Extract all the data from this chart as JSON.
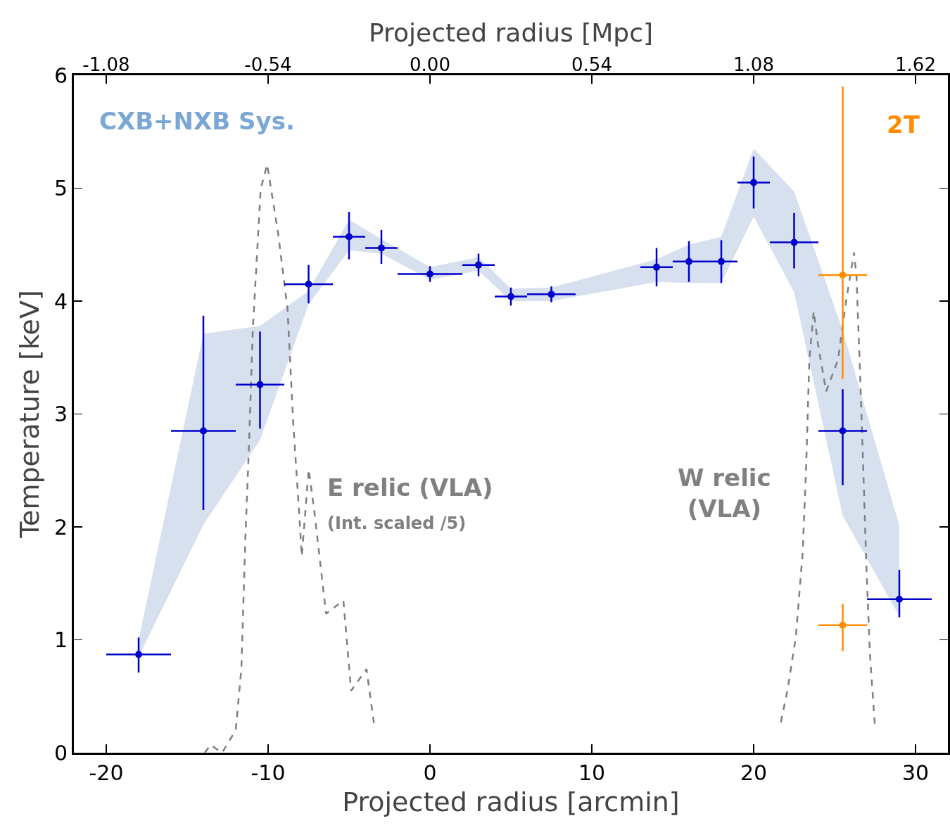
{
  "chart_data": {
    "type": "scatter",
    "xlabel": "Projected radius [arcmin]",
    "ylabel": "Temperature [keV]",
    "x2label": "Projected radius [Mpc]",
    "xlim": [
      -22,
      32
    ],
    "xticks": [
      -20,
      -10,
      0,
      10,
      20,
      30
    ],
    "x2lim": [
      -1.188,
      1.728
    ],
    "x2ticks": [
      -1.08,
      -0.54,
      {
        "value": 0,
        "label": "0.00"
      },
      0.54,
      1.08,
      1.62
    ],
    "ylim": [
      0,
      6
    ],
    "yticks": [
      0,
      1,
      2,
      3,
      4,
      5,
      6
    ],
    "grid": false,
    "marker": "circle",
    "annotations": [
      "CXB+NXB Sys.",
      "(Int. scaled /5)"
    ],
    "series": [
      {
        "type": "line",
        "name": "E relic (VLA)",
        "color": "#808080",
        "line_style": "dashed",
        "marker": "none",
        "x": [
          -13.91,
          -13.56,
          -12.84,
          -12.0,
          -11.65,
          -11.41,
          -11.18,
          -10.94,
          -10.46,
          -10.06,
          -9.39,
          -8.8,
          -8.44,
          -8.08,
          -7.92,
          -7.49,
          -7.13,
          -6.42,
          -5.35,
          -4.87,
          -3.92,
          -3.44
        ],
        "values": [
          0,
          0.07,
          0,
          0.2,
          0.75,
          1.88,
          2.73,
          3.76,
          4.99,
          5.21,
          4.61,
          3.93,
          2.9,
          2.12,
          1.74,
          2.51,
          2.12,
          1.23,
          1.35,
          0.55,
          0.74,
          0.24
        ]
      },
      {
        "type": "line",
        "name": "W relic (VLA)",
        "color": "#808080",
        "line_style": "dashed",
        "marker": "none",
        "x": [
          21.68,
          22.1,
          22.61,
          23.03,
          23.24,
          23.44,
          23.71,
          23.96,
          24.48,
          25.21,
          25.72,
          26.2,
          26.35,
          26.56,
          26.77,
          26.97,
          27.18,
          27.49
        ],
        "values": [
          0.27,
          0.56,
          1.03,
          1.78,
          2.52,
          3.48,
          3.91,
          3.63,
          3.2,
          3.48,
          4.01,
          4.43,
          4.22,
          3.42,
          2.52,
          1.63,
          0.88,
          0.24
        ]
      },
      {
        "color": "#0000cc",
        "x": [
          -18,
          -14,
          -10.5,
          -7.5,
          -5,
          -3,
          0,
          3,
          5,
          7.5,
          14,
          16,
          18,
          20,
          22.5,
          25.5,
          29
        ],
        "values": [
          0.87,
          2.85,
          3.26,
          4.15,
          4.57,
          4.47,
          4.24,
          4.32,
          4.04,
          4.06,
          4.3,
          4.35,
          4.35,
          5.05,
          4.52,
          2.85,
          1.36
        ],
        "errors": [
          [
            0.71,
            1.02
          ],
          [
            2.15,
            3.87
          ],
          [
            2.87,
            3.73
          ],
          [
            3.98,
            4.32
          ],
          [
            4.37,
            4.79
          ],
          [
            4.33,
            4.63
          ],
          0.07,
          0.1,
          0.08,
          0.07,
          0.17,
          0.18,
          0.19,
          0.23,
          [
            4.29,
            4.78
          ],
          [
            2.37,
            3.22
          ],
          [
            1.2,
            1.62
          ]
        ],
        "xerrors": [
          2,
          2,
          1.5,
          1.5,
          1,
          1,
          2,
          1,
          1,
          1.5,
          1,
          1,
          1,
          1,
          1.5,
          1.5,
          2
        ],
        "lower": [
          0.85,
          2.02,
          2.77,
          3.97,
          4.45,
          4.42,
          4.19,
          4.27,
          4.0,
          4.0,
          4.17,
          4.16,
          4.16,
          4.75,
          4.08,
          2.1,
          1.21
        ],
        "upper": [
          1.0,
          3.71,
          3.78,
          4.09,
          4.72,
          4.55,
          4.3,
          4.39,
          4.11,
          4.12,
          4.37,
          4.5,
          4.57,
          5.35,
          4.97,
          3.74,
          2.01
        ]
      },
      {
        "name": "2T",
        "color": "#ff8c00",
        "x": [
          25.5,
          25.5
        ],
        "values": [
          4.23,
          1.13
        ],
        "errors": [
          [
            3.31,
            5.9
          ],
          [
            0.9,
            1.32
          ]
        ],
        "xerrors": [
          1.5,
          1.5
        ]
      }
    ]
  }
}
